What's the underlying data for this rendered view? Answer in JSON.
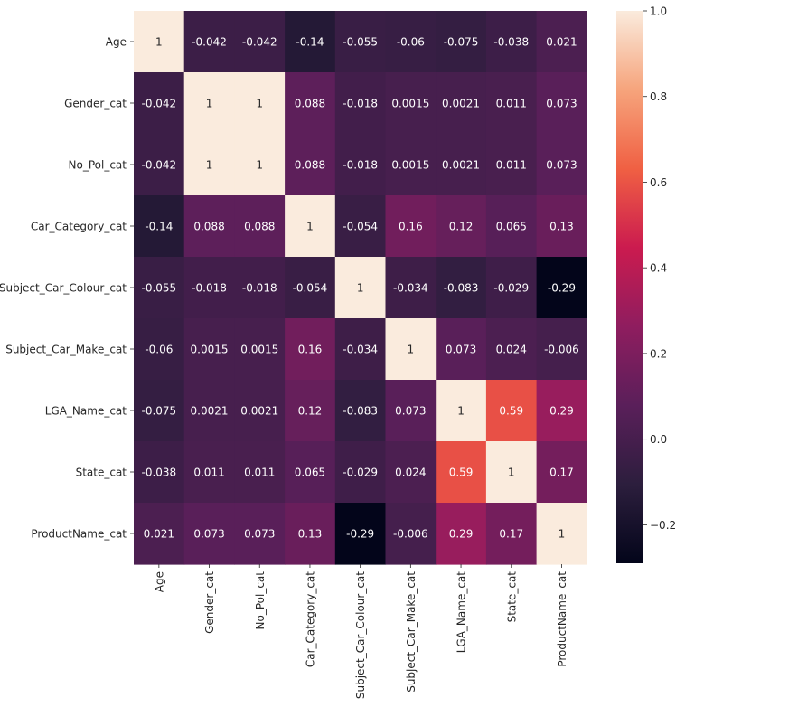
{
  "chart_data": {
    "type": "heatmap",
    "title": "",
    "xlabel": "",
    "ylabel": "",
    "rows": [
      "Age",
      "Gender_cat",
      "No_Pol_cat",
      "Car_Category_cat",
      "Subject_Car_Colour_cat",
      "Subject_Car_Make_cat",
      "LGA_Name_cat",
      "State_cat",
      "ProductName_cat"
    ],
    "columns": [
      "Age",
      "Gender_cat",
      "No_Pol_cat",
      "Car_Category_cat",
      "Subject_Car_Colour_cat",
      "Subject_Car_Make_cat",
      "LGA_Name_cat",
      "State_cat",
      "ProductName_cat"
    ],
    "values": [
      [
        1,
        -0.042,
        -0.042,
        -0.14,
        -0.055,
        -0.06,
        -0.075,
        -0.038,
        0.021
      ],
      [
        -0.042,
        1,
        1,
        0.088,
        -0.018,
        0.0015,
        0.0021,
        0.011,
        0.073
      ],
      [
        -0.042,
        1,
        1,
        0.088,
        -0.018,
        0.0015,
        0.0021,
        0.011,
        0.073
      ],
      [
        -0.14,
        0.088,
        0.088,
        1,
        -0.054,
        0.16,
        0.12,
        0.065,
        0.13
      ],
      [
        -0.055,
        -0.018,
        -0.018,
        -0.054,
        1,
        -0.034,
        -0.083,
        -0.029,
        -0.29
      ],
      [
        -0.06,
        0.0015,
        0.0015,
        0.16,
        -0.034,
        1,
        0.073,
        0.024,
        -0.006
      ],
      [
        -0.075,
        0.0021,
        0.0021,
        0.12,
        -0.083,
        0.073,
        1,
        0.59,
        0.29
      ],
      [
        -0.038,
        0.011,
        0.011,
        0.065,
        -0.029,
        0.024,
        0.59,
        1,
        0.17
      ],
      [
        0.021,
        0.073,
        0.073,
        0.13,
        -0.29,
        -0.006,
        0.29,
        0.17,
        1
      ]
    ],
    "labels": [
      [
        "1",
        "-0.042",
        "-0.042",
        "-0.14",
        "-0.055",
        "-0.06",
        "-0.075",
        "-0.038",
        "0.021"
      ],
      [
        "-0.042",
        "1",
        "1",
        "0.088",
        "-0.018",
        "0.0015",
        "0.0021",
        "0.011",
        "0.073"
      ],
      [
        "-0.042",
        "1",
        "1",
        "0.088",
        "-0.018",
        "0.0015",
        "0.0021",
        "0.011",
        "0.073"
      ],
      [
        "-0.14",
        "0.088",
        "0.088",
        "1",
        "-0.054",
        "0.16",
        "0.12",
        "0.065",
        "0.13"
      ],
      [
        "-0.055",
        "-0.018",
        "-0.018",
        "-0.054",
        "1",
        "-0.034",
        "-0.083",
        "-0.029",
        "-0.29"
      ],
      [
        "-0.06",
        "0.0015",
        "0.0015",
        "0.16",
        "-0.034",
        "1",
        "0.073",
        "0.024",
        "-0.006"
      ],
      [
        "-0.075",
        "0.0021",
        "0.0021",
        "0.12",
        "-0.083",
        "0.073",
        "1",
        "0.59",
        "0.29"
      ],
      [
        "-0.038",
        "0.011",
        "0.011",
        "0.065",
        "-0.029",
        "0.024",
        "0.59",
        "1",
        "0.17"
      ],
      [
        "0.021",
        "0.073",
        "0.073",
        "0.13",
        "-0.29",
        "-0.006",
        "0.29",
        "0.17",
        "1"
      ]
    ],
    "colorbar": {
      "min": -0.29,
      "max": 1.0,
      "ticks": [
        -0.2,
        0.0,
        0.2,
        0.4,
        0.6,
        0.8,
        1.0
      ],
      "tick_labels": [
        "−0.2",
        "0.0",
        "0.2",
        "0.4",
        "0.6",
        "0.8",
        "1.0"
      ],
      "colormap": "rocket",
      "colormap_stops": [
        "#03051a",
        "#2c1e3d",
        "#5a1f5a",
        "#8f1d5f",
        "#cb1b4f",
        "#f06043",
        "#f6a47c",
        "#faebdd"
      ]
    },
    "annotation_colors": {
      "light_bg": "#262626",
      "dark_bg": "#ffffff"
    },
    "grid": false,
    "legend": "none"
  }
}
